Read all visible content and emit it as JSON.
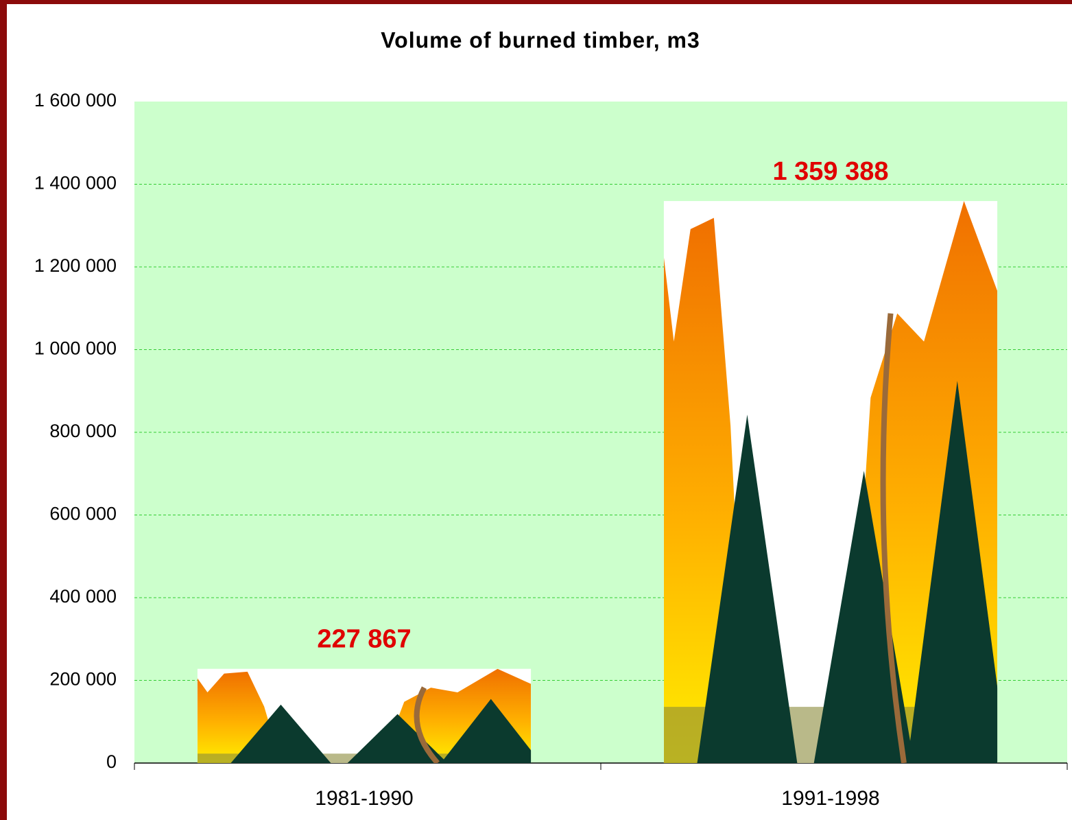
{
  "chart_data": {
    "type": "bar",
    "title": "Volume of burned timber, m3",
    "categories": [
      "1981-1990",
      "1991-1998"
    ],
    "values": [
      227867,
      1359388
    ],
    "value_labels": [
      "227 867",
      "1 359 388"
    ],
    "ylim": [
      0,
      1600000
    ],
    "yticks": [
      0,
      {
        "value": 200000,
        "label": "200 000"
      },
      {
        "value": 400000,
        "label": "400 000"
      },
      {
        "value": 600000,
        "label": "600 000"
      },
      {
        "value": 800000,
        "label": "800 000"
      },
      {
        "value": 1000000,
        "label": "1 000 000"
      },
      {
        "value": 1200000,
        "label": "1 200 000"
      },
      {
        "value": 1400000,
        "label": "1 400 000"
      },
      {
        "value": 1600000,
        "label": "1 600 000"
      }
    ],
    "grid": true,
    "plot_background": "#ccffcc",
    "grid_color": "#33cc33",
    "label_color": "#e00000"
  }
}
